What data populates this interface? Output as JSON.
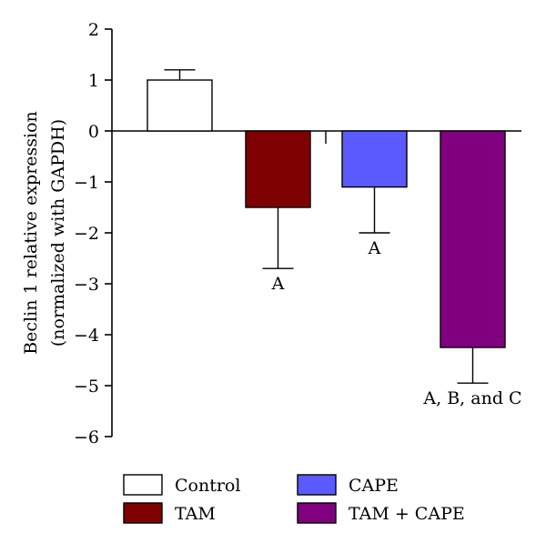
{
  "chart_data": {
    "type": "bar",
    "ylabel_line1": "Beclin 1 relative expression",
    "ylabel_line2": "(normalized with GAPDH)",
    "ylim": [
      -6,
      2
    ],
    "yticks": [
      2,
      1,
      0,
      -1,
      -2,
      -3,
      -4,
      -5,
      -6
    ],
    "ytick_labels": [
      "2",
      "1",
      "0",
      "−1",
      "−2",
      "−3",
      "−4",
      "−5",
      "−6"
    ],
    "grid": false,
    "legend_position": "bottom",
    "categories": [
      "Control",
      "TAM",
      "CAPE",
      "TAM + CAPE"
    ],
    "values": [
      1.0,
      -1.5,
      -1.1,
      -4.25
    ],
    "errors": [
      0.2,
      1.2,
      0.9,
      0.7
    ],
    "colors": [
      "#ffffff",
      "#7f0000",
      "#5a5aff",
      "#800080"
    ],
    "annotations": [
      "",
      "A",
      "A",
      "A, B, and C"
    ]
  }
}
